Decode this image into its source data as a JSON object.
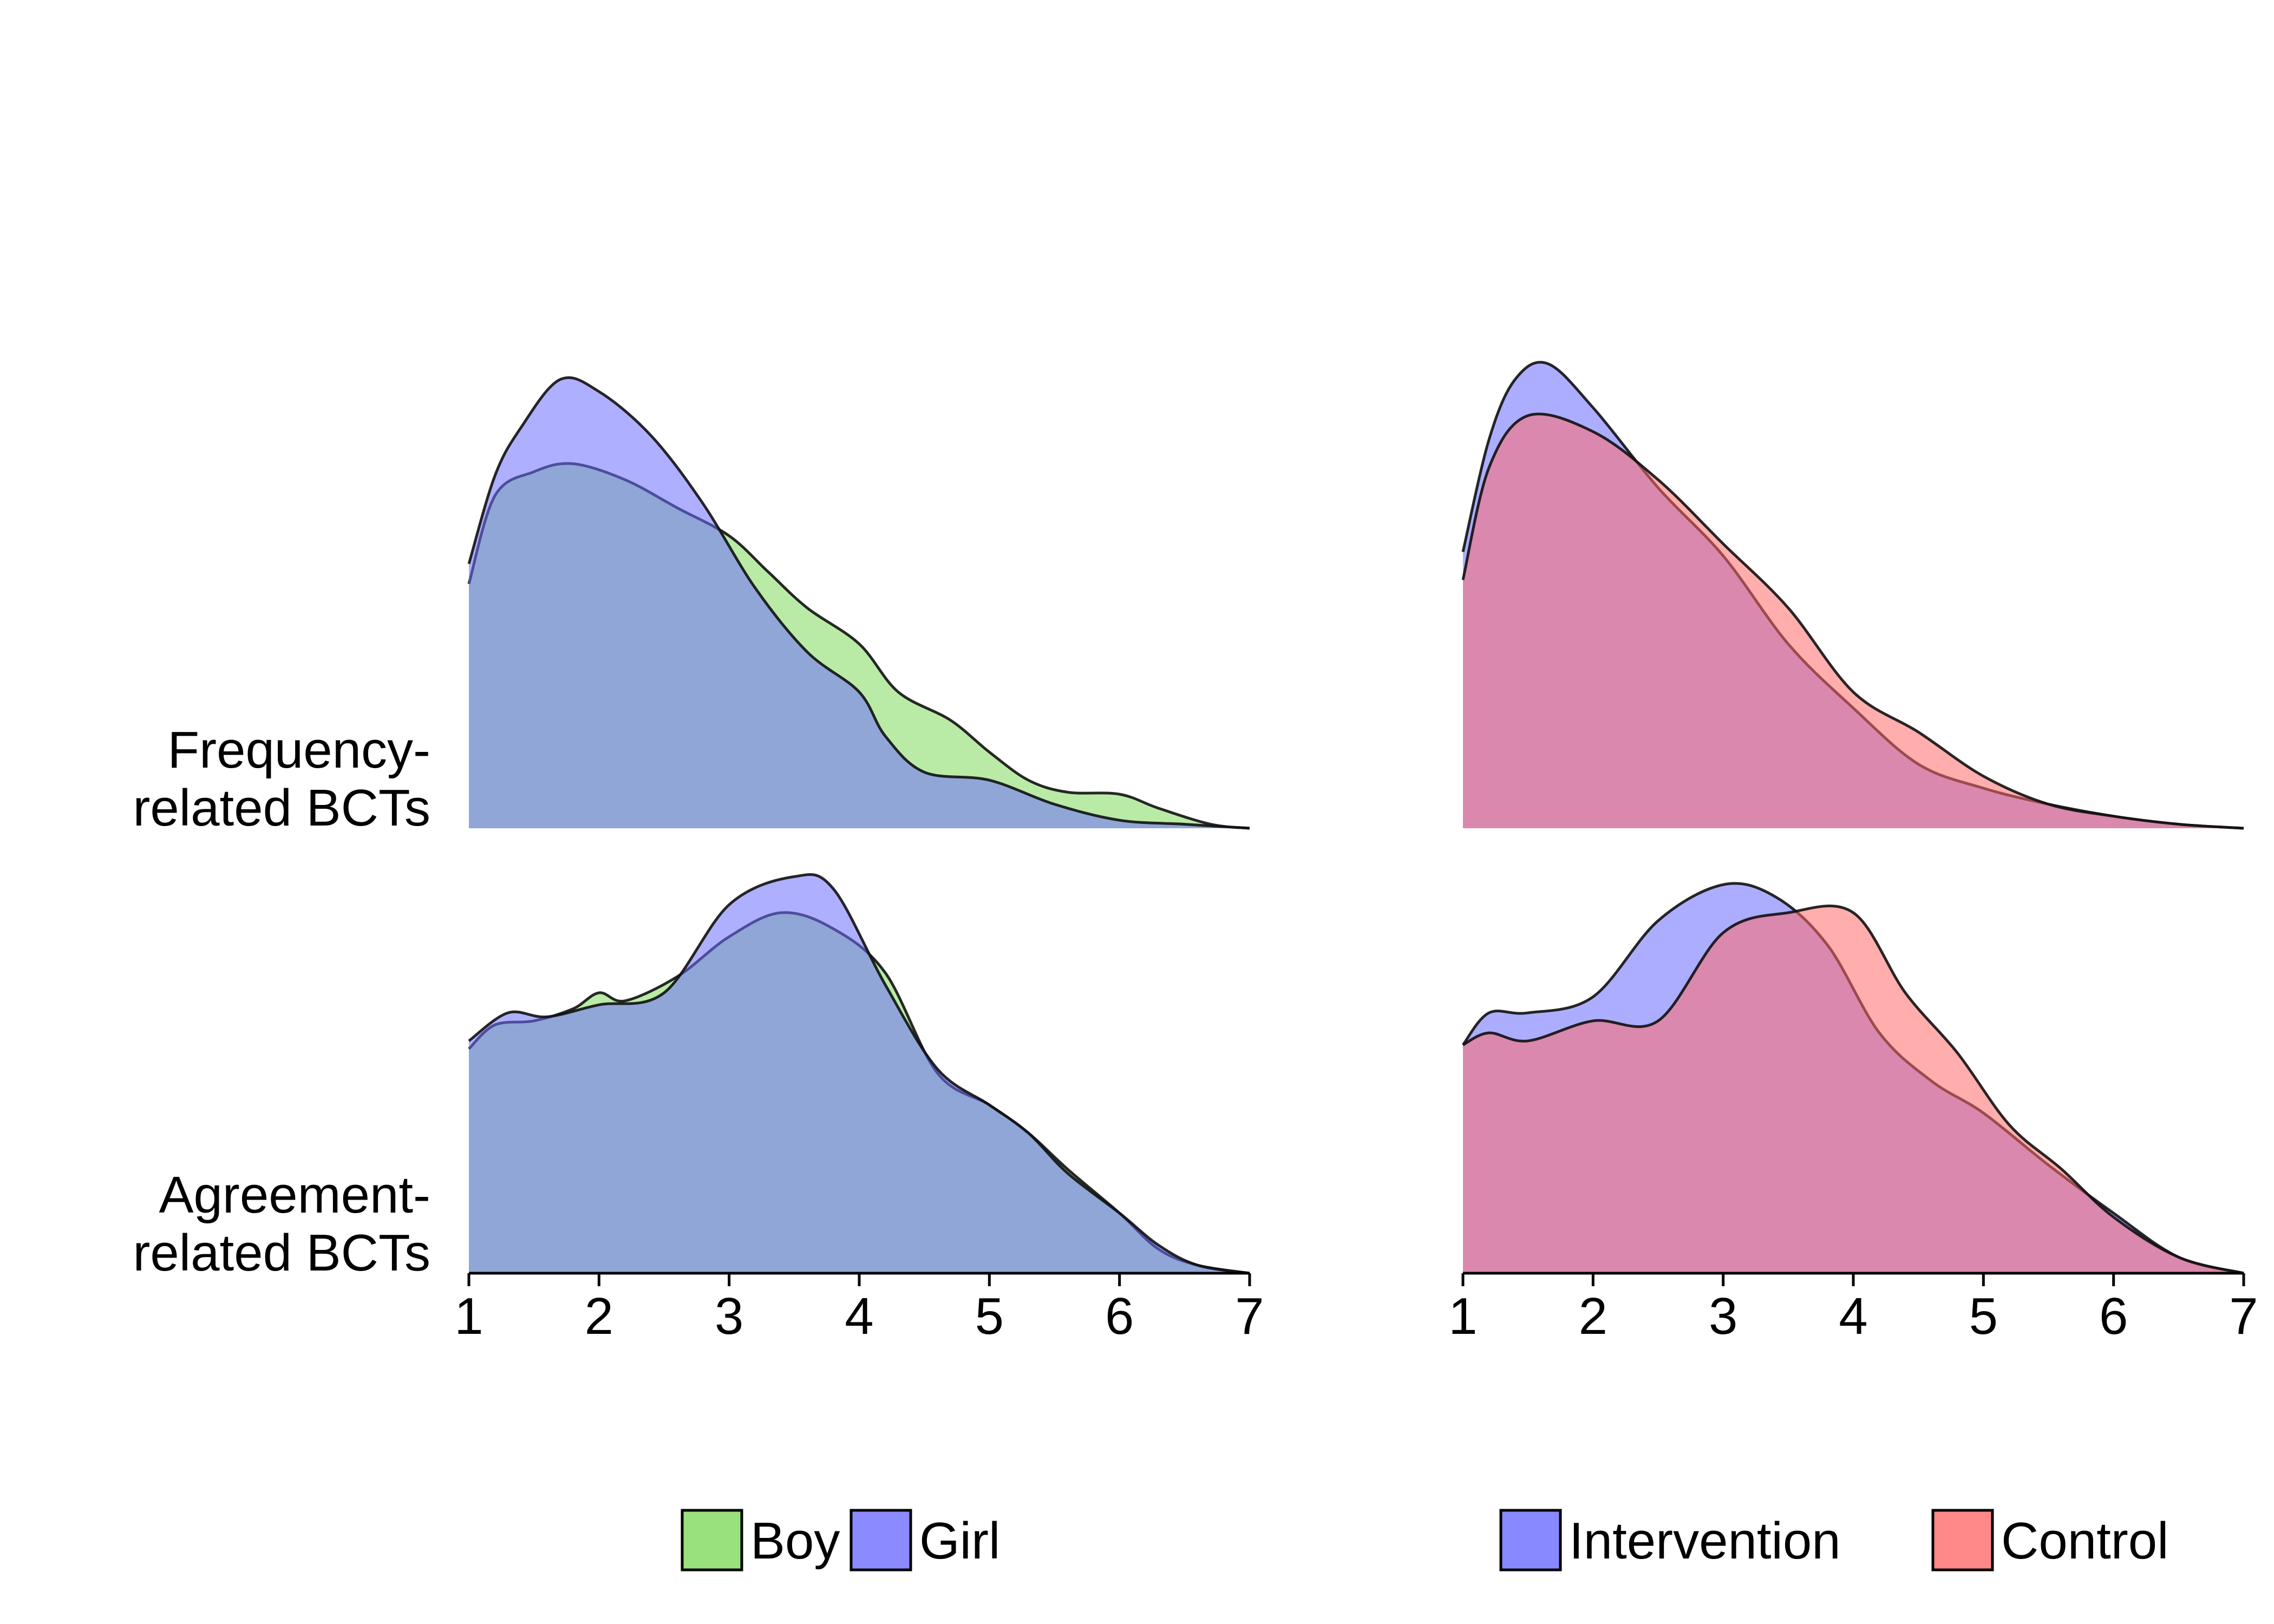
{
  "chart_data": [
    {
      "type": "area",
      "subtype": "ridgeline-density",
      "title": "",
      "xlabel": "",
      "ylabel": "",
      "xlim": [
        1,
        7
      ],
      "x_ticks": [
        "1",
        "2",
        "3",
        "4",
        "5",
        "6",
        "7"
      ],
      "categories": [
        "Frequency-\nrelated BCTs",
        "Agreement-\nrelated BCTs"
      ],
      "legend": {
        "position": "bottom",
        "entries": [
          "Boy",
          "Girl"
        ]
      },
      "grid": false,
      "series": [
        {
          "name": "Boy",
          "color": "#7fda5c",
          "ridges": [
            {
              "category": 0,
              "x": [
                1.0,
                1.2,
                1.5,
                1.8,
                2.2,
                2.6,
                3.0,
                3.3,
                3.6,
                4.0,
                4.3,
                4.7,
                5.0,
                5.3,
                5.6,
                6.0,
                6.3,
                6.7,
                7.0
              ],
              "y": [
                0.61,
                0.83,
                0.89,
                0.91,
                0.87,
                0.8,
                0.73,
                0.64,
                0.55,
                0.46,
                0.34,
                0.27,
                0.19,
                0.12,
                0.09,
                0.085,
                0.05,
                0.01,
                0.0
              ]
            },
            {
              "category": 1,
              "x": [
                1.0,
                1.2,
                1.5,
                1.8,
                2.0,
                2.2,
                2.6,
                3.0,
                3.4,
                3.8,
                4.2,
                4.6,
                5.0,
                5.3,
                5.6,
                6.0,
                6.3,
                6.6,
                7.0
              ],
              "y": [
                0.56,
                0.62,
                0.63,
                0.66,
                0.7,
                0.68,
                0.74,
                0.84,
                0.9,
                0.86,
                0.75,
                0.5,
                0.42,
                0.35,
                0.26,
                0.15,
                0.06,
                0.02,
                0.0
              ]
            }
          ]
        },
        {
          "name": "Girl",
          "color": "#6e6eff",
          "ridges": [
            {
              "category": 0,
              "x": [
                1.0,
                1.2,
                1.4,
                1.7,
                2.0,
                2.4,
                2.8,
                3.2,
                3.6,
                4.0,
                4.2,
                4.5,
                5.0,
                5.5,
                6.0,
                6.5,
                7.0
              ],
              "y": [
                0.66,
                0.88,
                1.0,
                1.12,
                1.09,
                0.98,
                0.81,
                0.6,
                0.44,
                0.34,
                0.23,
                0.14,
                0.12,
                0.06,
                0.02,
                0.01,
                0.0
              ]
            },
            {
              "category": 1,
              "x": [
                1.0,
                1.3,
                1.6,
                2.0,
                2.5,
                3.0,
                3.5,
                3.8,
                4.2,
                4.6,
                5.0,
                5.3,
                5.6,
                6.0,
                6.3,
                6.6,
                7.0
              ],
              "y": [
                0.58,
                0.65,
                0.64,
                0.67,
                0.7,
                0.92,
                0.99,
                0.96,
                0.72,
                0.51,
                0.42,
                0.35,
                0.25,
                0.15,
                0.07,
                0.02,
                0.0
              ]
            }
          ]
        }
      ]
    },
    {
      "type": "area",
      "subtype": "ridgeline-density",
      "title": "",
      "xlabel": "",
      "ylabel": "",
      "xlim": [
        1,
        7
      ],
      "x_ticks": [
        "1",
        "2",
        "3",
        "4",
        "5",
        "6",
        "7"
      ],
      "categories": [
        "Frequency-\nrelated BCTs",
        "Agreement-\nrelated BCTs"
      ],
      "legend": {
        "position": "bottom",
        "entries": [
          "Intervention",
          "Control"
        ]
      },
      "grid": false,
      "series": [
        {
          "name": "Intervention",
          "color": "#6a6aff",
          "ridges": [
            {
              "category": 0,
              "x": [
                1.0,
                1.2,
                1.4,
                1.65,
                2.0,
                2.5,
                3.0,
                3.5,
                4.0,
                4.5,
                5.0,
                5.5,
                6.0,
                6.5,
                7.0
              ],
              "y": [
                0.69,
                0.97,
                1.12,
                1.16,
                1.05,
                0.85,
                0.68,
                0.46,
                0.3,
                0.16,
                0.1,
                0.06,
                0.03,
                0.01,
                0.0
              ]
            },
            {
              "category": 1,
              "x": [
                1.0,
                1.2,
                1.5,
                2.0,
                2.5,
                3.0,
                3.4,
                3.8,
                4.2,
                4.6,
                5.0,
                5.5,
                6.0,
                6.5,
                7.0
              ],
              "y": [
                0.57,
                0.65,
                0.65,
                0.69,
                0.88,
                0.97,
                0.94,
                0.82,
                0.6,
                0.48,
                0.4,
                0.27,
                0.15,
                0.04,
                0.0
              ]
            }
          ]
        },
        {
          "name": "Control",
          "color": "#ff6a6a",
          "ridges": [
            {
              "category": 0,
              "x": [
                1.0,
                1.2,
                1.5,
                2.0,
                2.5,
                3.0,
                3.5,
                4.0,
                4.5,
                5.0,
                5.5,
                6.0,
                6.5,
                7.0
              ],
              "y": [
                0.62,
                0.9,
                1.03,
                0.99,
                0.87,
                0.71,
                0.55,
                0.34,
                0.24,
                0.13,
                0.06,
                0.03,
                0.01,
                0.0
              ]
            },
            {
              "category": 1,
              "x": [
                1.0,
                1.2,
                1.5,
                2.0,
                2.5,
                3.0,
                3.5,
                4.0,
                4.4,
                4.8,
                5.2,
                5.6,
                6.0,
                6.5,
                7.0
              ],
              "y": [
                0.57,
                0.6,
                0.58,
                0.63,
                0.63,
                0.85,
                0.9,
                0.9,
                0.7,
                0.55,
                0.37,
                0.26,
                0.14,
                0.04,
                0.0
              ]
            }
          ]
        }
      ]
    }
  ]
}
